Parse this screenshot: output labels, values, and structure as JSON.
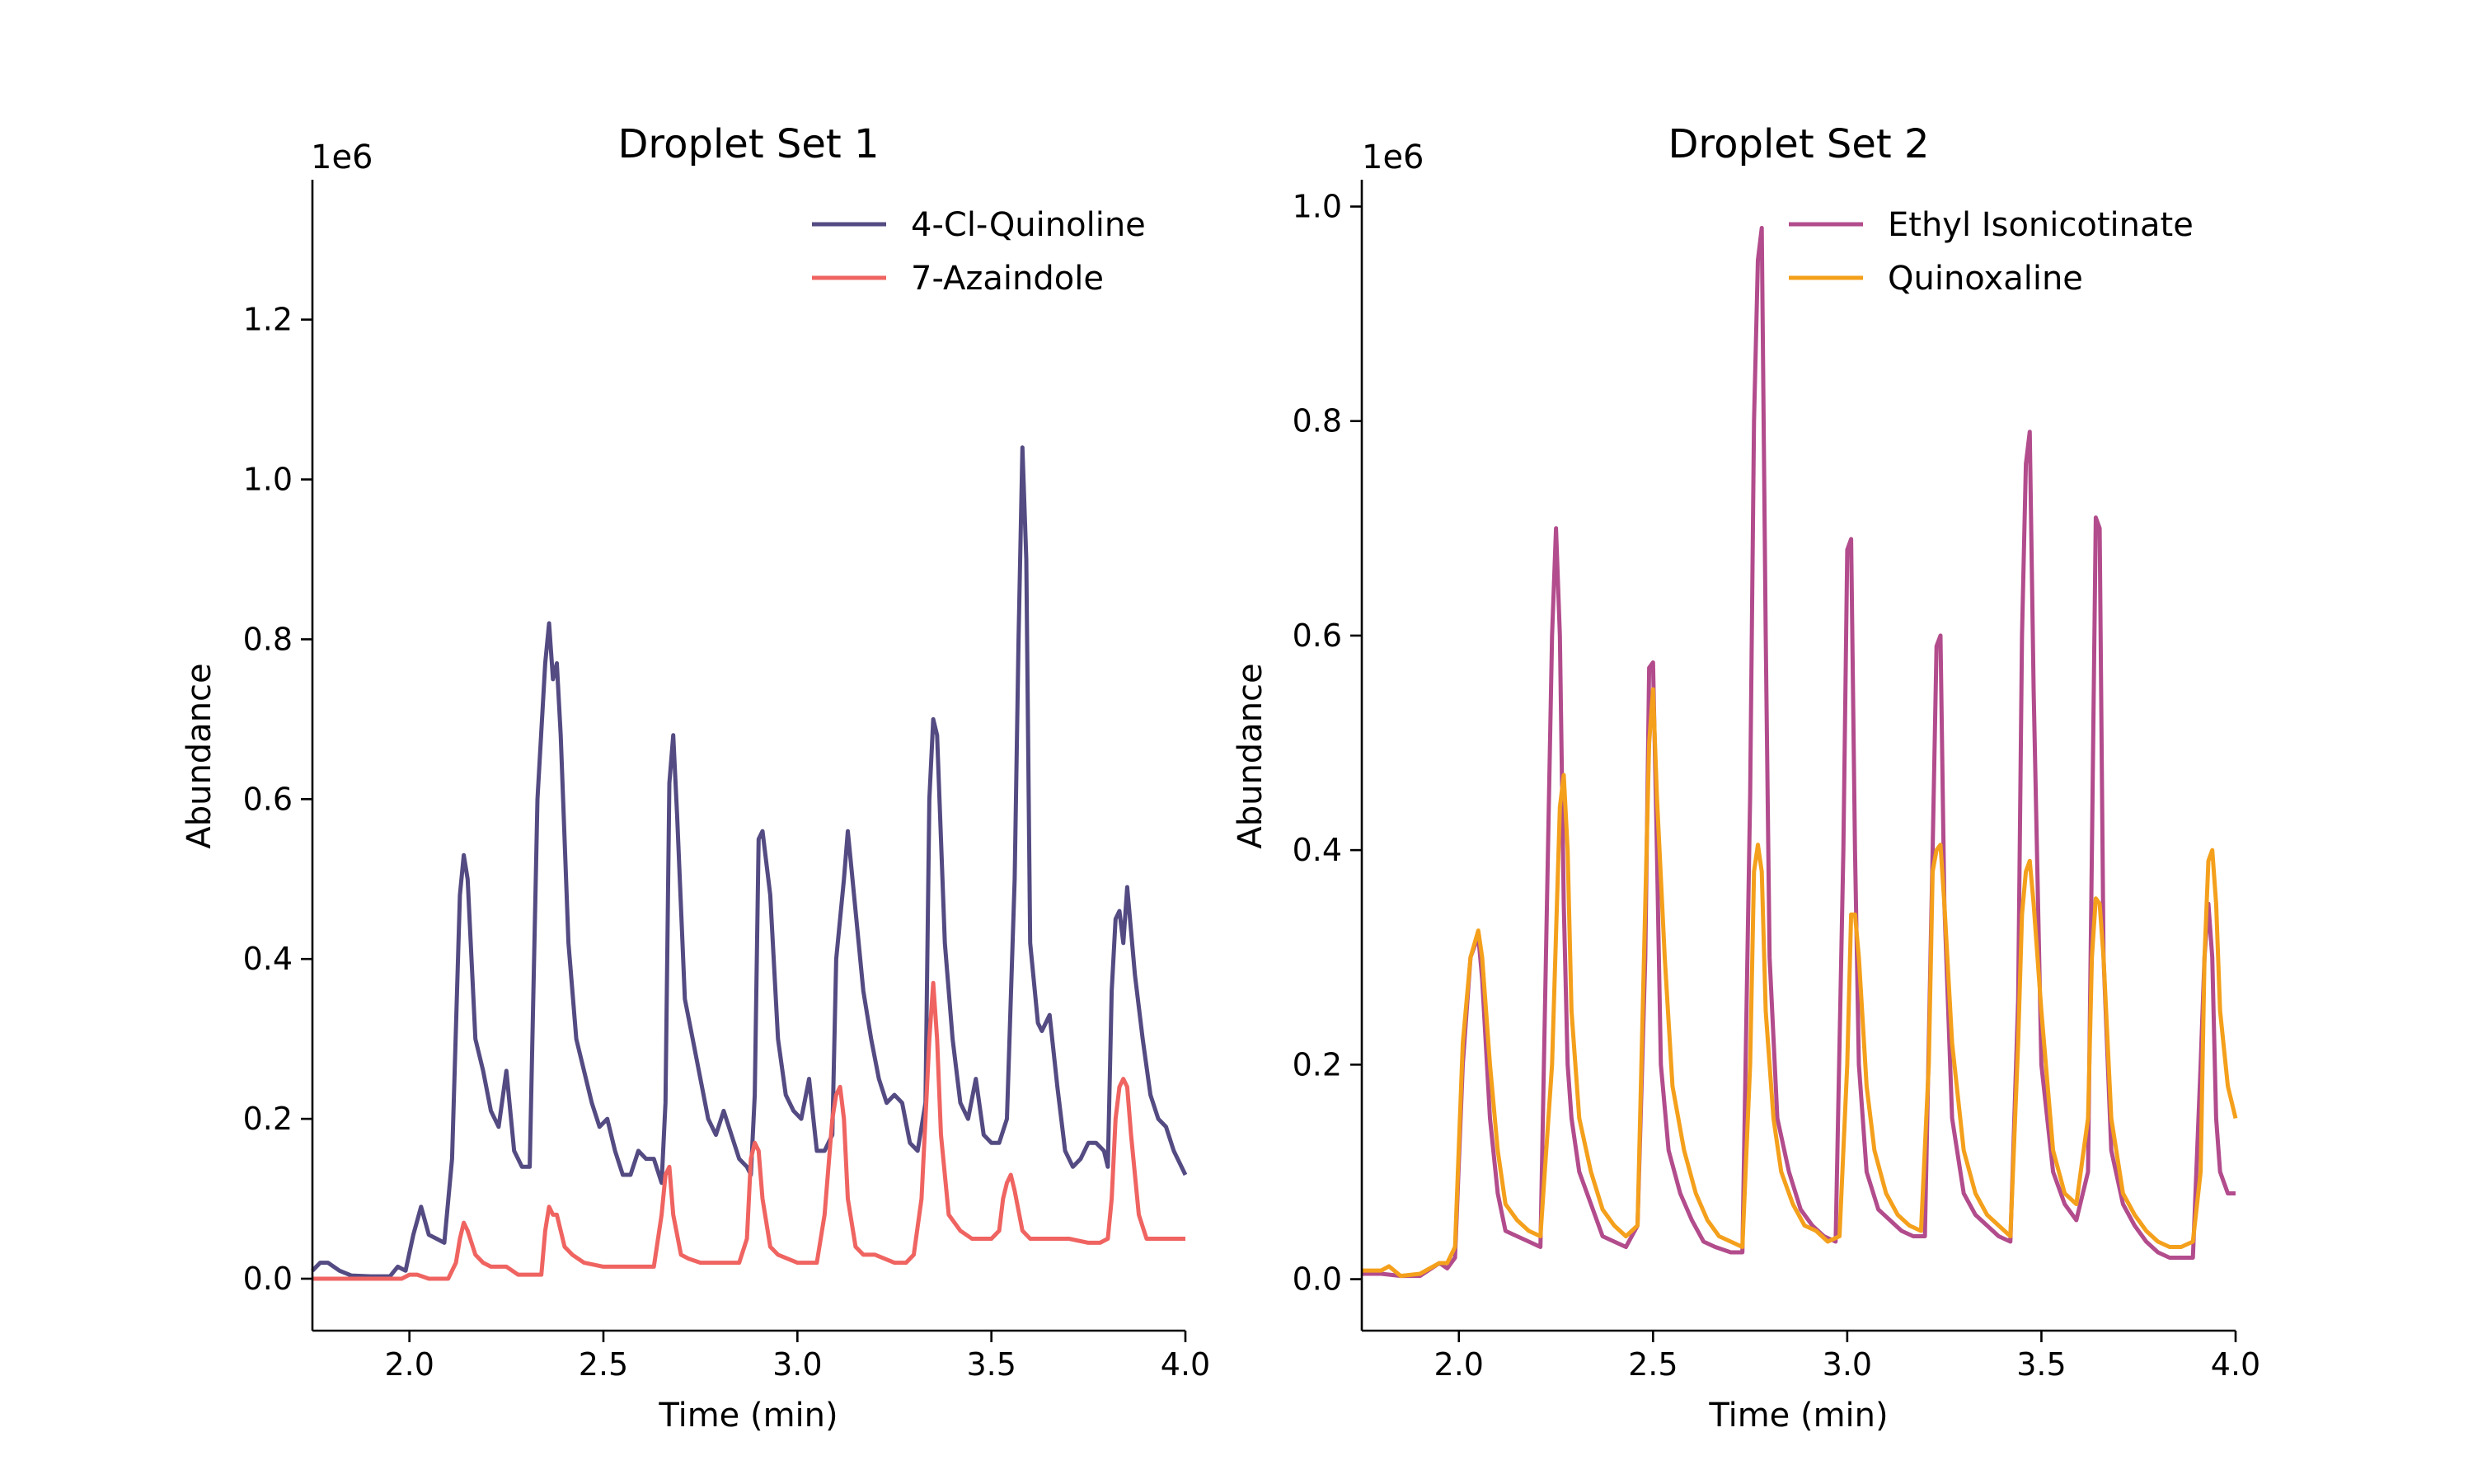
{
  "chart_data": [
    {
      "type": "line",
      "title": "Droplet Set 1",
      "xlabel": "Time (min)",
      "ylabel": "Abundance",
      "y_multiplier_label": "1e6",
      "xlim": [
        1.75,
        4.0
      ],
      "ylim": [
        -0.065,
        1.375
      ],
      "xticks": [
        2.0,
        2.5,
        3.0,
        3.5,
        4.0
      ],
      "xtick_labels": [
        "2.0",
        "2.5",
        "3.0",
        "3.5",
        "4.0"
      ],
      "yticks": [
        0.0,
        0.2,
        0.4,
        0.6,
        0.8,
        1.0,
        1.2
      ],
      "ytick_labels": [
        "0.0",
        "0.2",
        "0.4",
        "0.6",
        "0.8",
        "1.0",
        "1.2"
      ],
      "legend_position": "top-right",
      "grid": false,
      "series": [
        {
          "name": "4-Cl-Quinoline",
          "color": "#534b82",
          "x": [
            1.75,
            1.77,
            1.79,
            1.82,
            1.85,
            1.9,
            1.95,
            1.97,
            1.99,
            2.01,
            2.03,
            2.05,
            2.07,
            2.09,
            2.11,
            2.13,
            2.14,
            2.15,
            2.16,
            2.17,
            2.19,
            2.21,
            2.23,
            2.25,
            2.27,
            2.28,
            2.29,
            2.31,
            2.33,
            2.35,
            2.36,
            2.37,
            2.38,
            2.39,
            2.41,
            2.43,
            2.45,
            2.47,
            2.49,
            2.51,
            2.53,
            2.55,
            2.57,
            2.59,
            2.61,
            2.63,
            2.65,
            2.66,
            2.67,
            2.68,
            2.69,
            2.71,
            2.73,
            2.75,
            2.77,
            2.79,
            2.81,
            2.83,
            2.85,
            2.87,
            2.88,
            2.89,
            2.9,
            2.91,
            2.93,
            2.95,
            2.97,
            2.99,
            3.01,
            3.03,
            3.05,
            3.07,
            3.09,
            3.1,
            3.11,
            3.12,
            3.13,
            3.15,
            3.17,
            3.19,
            3.21,
            3.23,
            3.25,
            3.27,
            3.29,
            3.31,
            3.33,
            3.34,
            3.35,
            3.36,
            3.38,
            3.4,
            3.42,
            3.44,
            3.46,
            3.48,
            3.5,
            3.52,
            3.54,
            3.56,
            3.57,
            3.58,
            3.59,
            3.6,
            3.62,
            3.63,
            3.65,
            3.67,
            3.69,
            3.71,
            3.73,
            3.75,
            3.77,
            3.79,
            3.8,
            3.81,
            3.82,
            3.83,
            3.84,
            3.85,
            3.87,
            3.89,
            3.91,
            3.93,
            3.95,
            3.97,
            4.0
          ],
          "values": [
            0.01,
            0.02,
            0.02,
            0.01,
            0.004,
            0.003,
            0.003,
            0.015,
            0.01,
            0.055,
            0.09,
            0.055,
            0.05,
            0.045,
            0.15,
            0.48,
            0.53,
            0.5,
            0.4,
            0.3,
            0.26,
            0.21,
            0.19,
            0.26,
            0.16,
            0.15,
            0.14,
            0.14,
            0.6,
            0.77,
            0.82,
            0.75,
            0.77,
            0.68,
            0.42,
            0.3,
            0.26,
            0.22,
            0.19,
            0.2,
            0.16,
            0.13,
            0.13,
            0.16,
            0.15,
            0.15,
            0.12,
            0.22,
            0.62,
            0.68,
            0.58,
            0.35,
            0.3,
            0.25,
            0.2,
            0.18,
            0.21,
            0.18,
            0.15,
            0.14,
            0.13,
            0.23,
            0.55,
            0.56,
            0.48,
            0.3,
            0.23,
            0.21,
            0.2,
            0.25,
            0.16,
            0.16,
            0.18,
            0.4,
            0.45,
            0.5,
            0.56,
            0.46,
            0.36,
            0.3,
            0.25,
            0.22,
            0.23,
            0.22,
            0.17,
            0.16,
            0.22,
            0.6,
            0.7,
            0.68,
            0.42,
            0.3,
            0.22,
            0.2,
            0.25,
            0.18,
            0.17,
            0.17,
            0.2,
            0.5,
            0.8,
            1.04,
            0.9,
            0.42,
            0.32,
            0.31,
            0.33,
            0.24,
            0.16,
            0.14,
            0.15,
            0.17,
            0.17,
            0.16,
            0.14,
            0.36,
            0.45,
            0.46,
            0.42,
            0.49,
            0.38,
            0.3,
            0.23,
            0.2,
            0.19,
            0.16,
            0.13
          ]
        },
        {
          "name": "7-Azaindole",
          "color": "#ef6461",
          "x": [
            1.75,
            1.8,
            1.85,
            1.9,
            1.95,
            1.98,
            2.0,
            2.02,
            2.05,
            2.07,
            2.1,
            2.12,
            2.13,
            2.14,
            2.15,
            2.17,
            2.19,
            2.21,
            2.25,
            2.28,
            2.31,
            2.34,
            2.35,
            2.36,
            2.37,
            2.38,
            2.4,
            2.42,
            2.45,
            2.5,
            2.55,
            2.6,
            2.63,
            2.65,
            2.66,
            2.67,
            2.68,
            2.7,
            2.72,
            2.75,
            2.8,
            2.85,
            2.87,
            2.88,
            2.89,
            2.9,
            2.91,
            2.93,
            2.95,
            3.0,
            3.05,
            3.07,
            3.09,
            3.1,
            3.11,
            3.12,
            3.13,
            3.15,
            3.17,
            3.2,
            3.25,
            3.28,
            3.3,
            3.32,
            3.33,
            3.34,
            3.35,
            3.36,
            3.37,
            3.39,
            3.42,
            3.45,
            3.48,
            3.5,
            3.52,
            3.53,
            3.54,
            3.55,
            3.56,
            3.58,
            3.6,
            3.65,
            3.7,
            3.75,
            3.78,
            3.8,
            3.81,
            3.82,
            3.83,
            3.84,
            3.85,
            3.86,
            3.88,
            3.9,
            3.95,
            4.0
          ],
          "values": [
            0.0,
            0.0,
            0.0,
            0.0,
            0.0,
            0.0,
            0.005,
            0.005,
            0.0,
            0.0,
            0.0,
            0.02,
            0.05,
            0.07,
            0.06,
            0.03,
            0.02,
            0.015,
            0.015,
            0.005,
            0.005,
            0.005,
            0.06,
            0.09,
            0.08,
            0.08,
            0.04,
            0.03,
            0.02,
            0.015,
            0.015,
            0.015,
            0.015,
            0.08,
            0.13,
            0.14,
            0.08,
            0.03,
            0.025,
            0.02,
            0.02,
            0.02,
            0.05,
            0.15,
            0.17,
            0.16,
            0.1,
            0.04,
            0.03,
            0.02,
            0.02,
            0.08,
            0.2,
            0.23,
            0.24,
            0.2,
            0.1,
            0.04,
            0.03,
            0.03,
            0.02,
            0.02,
            0.03,
            0.1,
            0.2,
            0.3,
            0.37,
            0.3,
            0.18,
            0.08,
            0.06,
            0.05,
            0.05,
            0.05,
            0.06,
            0.1,
            0.12,
            0.13,
            0.11,
            0.06,
            0.05,
            0.05,
            0.05,
            0.045,
            0.045,
            0.05,
            0.1,
            0.2,
            0.24,
            0.25,
            0.24,
            0.18,
            0.08,
            0.05,
            0.05,
            0.05
          ]
        }
      ]
    },
    {
      "type": "line",
      "title": "Droplet Set 2",
      "xlabel": "Time (min)",
      "ylabel": "Abundance",
      "y_multiplier_label": "1e6",
      "xlim": [
        1.75,
        4.0
      ],
      "ylim": [
        -0.048,
        1.025
      ],
      "xticks": [
        2.0,
        2.5,
        3.0,
        3.5,
        4.0
      ],
      "xtick_labels": [
        "2.0",
        "2.5",
        "3.0",
        "3.5",
        "4.0"
      ],
      "yticks": [
        0.0,
        0.2,
        0.4,
        0.6,
        0.8,
        1.0
      ],
      "ytick_labels": [
        "0.0",
        "0.2",
        "0.4",
        "0.6",
        "0.8",
        "1.0"
      ],
      "legend_position": "top-right",
      "grid": false,
      "series": [
        {
          "name": "Ethyl Isonicotinate",
          "color": "#b24c8c",
          "x": [
            1.75,
            1.8,
            1.85,
            1.9,
            1.95,
            1.97,
            1.99,
            2.01,
            2.03,
            2.05,
            2.06,
            2.08,
            2.1,
            2.12,
            2.15,
            2.18,
            2.21,
            2.24,
            2.25,
            2.26,
            2.27,
            2.28,
            2.29,
            2.31,
            2.34,
            2.37,
            2.4,
            2.43,
            2.46,
            2.48,
            2.49,
            2.5,
            2.51,
            2.52,
            2.54,
            2.57,
            2.6,
            2.63,
            2.66,
            2.7,
            2.73,
            2.75,
            2.76,
            2.77,
            2.78,
            2.79,
            2.8,
            2.82,
            2.85,
            2.88,
            2.91,
            2.94,
            2.97,
            2.99,
            3.0,
            3.01,
            3.02,
            3.03,
            3.05,
            3.08,
            3.11,
            3.14,
            3.17,
            3.2,
            3.22,
            3.23,
            3.24,
            3.25,
            3.27,
            3.3,
            3.33,
            3.36,
            3.39,
            3.42,
            3.44,
            3.45,
            3.46,
            3.47,
            3.48,
            3.5,
            3.53,
            3.56,
            3.59,
            3.62,
            3.63,
            3.64,
            3.65,
            3.66,
            3.68,
            3.71,
            3.74,
            3.77,
            3.8,
            3.83,
            3.86,
            3.89,
            3.91,
            3.92,
            3.93,
            3.94,
            3.95,
            3.96,
            3.98,
            4.0
          ],
          "values": [
            0.005,
            0.005,
            0.003,
            0.003,
            0.015,
            0.01,
            0.02,
            0.2,
            0.3,
            0.32,
            0.28,
            0.15,
            0.08,
            0.045,
            0.04,
            0.035,
            0.03,
            0.6,
            0.7,
            0.6,
            0.35,
            0.2,
            0.15,
            0.1,
            0.07,
            0.04,
            0.035,
            0.03,
            0.05,
            0.3,
            0.57,
            0.575,
            0.4,
            0.2,
            0.12,
            0.08,
            0.055,
            0.035,
            0.03,
            0.025,
            0.025,
            0.45,
            0.8,
            0.95,
            0.98,
            0.6,
            0.3,
            0.15,
            0.1,
            0.065,
            0.05,
            0.04,
            0.035,
            0.4,
            0.68,
            0.69,
            0.4,
            0.2,
            0.1,
            0.065,
            0.055,
            0.045,
            0.04,
            0.04,
            0.4,
            0.59,
            0.6,
            0.35,
            0.15,
            0.08,
            0.06,
            0.05,
            0.04,
            0.035,
            0.26,
            0.6,
            0.76,
            0.79,
            0.55,
            0.2,
            0.1,
            0.07,
            0.055,
            0.1,
            0.4,
            0.71,
            0.7,
            0.3,
            0.12,
            0.07,
            0.05,
            0.035,
            0.025,
            0.02,
            0.02,
            0.02,
            0.2,
            0.3,
            0.35,
            0.3,
            0.15,
            0.1,
            0.08,
            0.08
          ]
        },
        {
          "name": "Quinoxaline",
          "color": "#f4a01c",
          "x": [
            1.75,
            1.8,
            1.82,
            1.85,
            1.9,
            1.95,
            1.97,
            1.99,
            2.01,
            2.03,
            2.05,
            2.06,
            2.08,
            2.1,
            2.12,
            2.15,
            2.18,
            2.21,
            2.24,
            2.26,
            2.27,
            2.28,
            2.29,
            2.31,
            2.34,
            2.37,
            2.4,
            2.43,
            2.46,
            2.48,
            2.49,
            2.5,
            2.51,
            2.53,
            2.55,
            2.58,
            2.61,
            2.64,
            2.67,
            2.7,
            2.73,
            2.75,
            2.76,
            2.77,
            2.78,
            2.79,
            2.81,
            2.83,
            2.86,
            2.89,
            2.92,
            2.95,
            2.98,
            3.0,
            3.01,
            3.02,
            3.03,
            3.05,
            3.07,
            3.1,
            3.13,
            3.16,
            3.19,
            3.21,
            3.22,
            3.23,
            3.24,
            3.25,
            3.27,
            3.3,
            3.33,
            3.36,
            3.39,
            3.42,
            3.44,
            3.45,
            3.46,
            3.47,
            3.48,
            3.5,
            3.53,
            3.56,
            3.59,
            3.62,
            3.63,
            3.64,
            3.65,
            3.66,
            3.68,
            3.71,
            3.74,
            3.77,
            3.8,
            3.83,
            3.86,
            3.89,
            3.91,
            3.92,
            3.93,
            3.94,
            3.95,
            3.96,
            3.98,
            4.0
          ],
          "values": [
            0.008,
            0.008,
            0.012,
            0.003,
            0.005,
            0.015,
            0.015,
            0.03,
            0.22,
            0.3,
            0.325,
            0.3,
            0.2,
            0.12,
            0.07,
            0.055,
            0.045,
            0.04,
            0.2,
            0.44,
            0.47,
            0.4,
            0.25,
            0.15,
            0.1,
            0.065,
            0.05,
            0.04,
            0.05,
            0.35,
            0.5,
            0.55,
            0.45,
            0.3,
            0.18,
            0.12,
            0.08,
            0.055,
            0.04,
            0.035,
            0.03,
            0.2,
            0.38,
            0.405,
            0.38,
            0.25,
            0.15,
            0.1,
            0.07,
            0.05,
            0.045,
            0.035,
            0.04,
            0.2,
            0.34,
            0.34,
            0.3,
            0.18,
            0.12,
            0.08,
            0.06,
            0.05,
            0.045,
            0.2,
            0.38,
            0.4,
            0.405,
            0.35,
            0.22,
            0.12,
            0.08,
            0.06,
            0.05,
            0.04,
            0.22,
            0.34,
            0.38,
            0.39,
            0.35,
            0.25,
            0.12,
            0.08,
            0.07,
            0.15,
            0.3,
            0.355,
            0.35,
            0.3,
            0.15,
            0.08,
            0.06,
            0.045,
            0.035,
            0.03,
            0.03,
            0.035,
            0.1,
            0.3,
            0.39,
            0.4,
            0.35,
            0.25,
            0.18,
            0.15
          ]
        }
      ]
    }
  ]
}
